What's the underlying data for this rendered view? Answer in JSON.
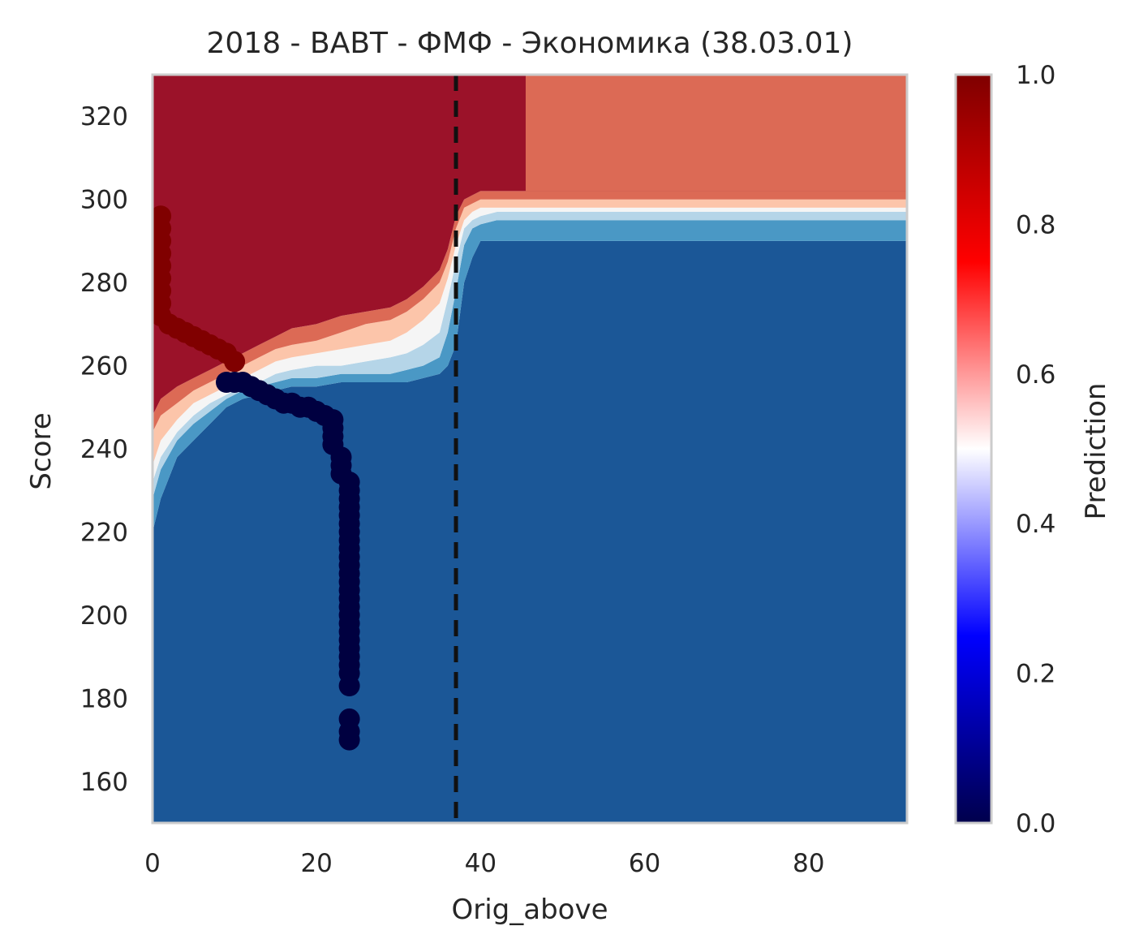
{
  "chart_data": {
    "type": "heatmap",
    "title": "2018 - ВАВТ - ФМФ - Экономика (38.03.01)",
    "xlabel": "Orig_above",
    "ylabel": "Score",
    "xlim": [
      0,
      92
    ],
    "ylim": [
      150,
      330
    ],
    "x_ticks": [
      0,
      20,
      40,
      60,
      80
    ],
    "y_ticks": [
      160,
      180,
      200,
      220,
      240,
      260,
      280,
      300,
      320
    ],
    "grid": false,
    "colorbar": {
      "label": "Prediction",
      "range": [
        0,
        1
      ],
      "ticks": [
        "0.0",
        "0.2",
        "0.4",
        "0.6",
        "0.8",
        "1.0"
      ],
      "colormap": "seismic"
    },
    "contour_levels": [
      {
        "from": 0.0,
        "to": 0.125,
        "color": "#1b5797"
      },
      {
        "from": 0.125,
        "to": 0.25,
        "color": "#4a98c5"
      },
      {
        "from": 0.25,
        "to": 0.375,
        "color": "#b5d5e8"
      },
      {
        "from": 0.375,
        "to": 0.5,
        "color": "#f5f5f5"
      },
      {
        "from": 0.5,
        "to": 0.625,
        "color": "#fcc5aa"
      },
      {
        "from": 0.625,
        "to": 0.75,
        "color": "#dc6a55"
      },
      {
        "from": 0.75,
        "to": 1.0,
        "color": "#9b1229"
      }
    ],
    "threshold_x": 37,
    "boundaries": {
      "x": [
        0,
        1,
        3,
        5,
        7,
        9,
        11,
        13,
        15,
        17,
        20,
        23,
        26,
        29,
        31,
        33,
        35,
        36,
        37,
        38,
        39,
        40,
        42,
        44,
        46,
        50,
        54,
        58,
        62,
        70,
        80,
        92
      ],
      "b1": [
        220,
        228,
        238,
        242,
        246,
        250,
        252,
        253,
        254,
        255,
        255,
        256,
        256,
        256,
        256,
        257,
        258,
        260,
        265,
        280,
        286,
        290,
        290,
        290,
        290,
        290,
        290,
        290,
        290,
        290,
        290,
        290
      ],
      "b2": [
        228,
        235,
        242,
        246,
        249,
        252,
        254,
        255,
        256,
        257,
        257,
        258,
        258,
        258,
        259,
        260,
        262,
        268,
        278,
        289,
        293,
        294,
        295,
        295,
        295,
        295,
        295,
        295,
        295,
        295,
        295,
        295
      ],
      "b3": [
        232,
        238,
        244,
        248,
        251,
        253,
        255,
        256,
        258,
        259,
        260,
        260,
        261,
        262,
        263,
        265,
        268,
        276,
        285,
        293,
        295,
        296,
        297,
        297,
        297,
        297,
        297,
        297,
        297,
        297,
        297,
        297
      ],
      "b4": [
        236,
        242,
        247,
        251,
        253,
        255,
        257,
        259,
        261,
        262,
        263,
        264,
        265,
        266,
        268,
        271,
        275,
        281,
        289,
        295,
        297,
        298,
        298,
        298,
        298,
        298,
        298,
        298,
        298,
        298,
        298,
        298
      ],
      "b5": [
        244,
        248,
        251,
        254,
        256,
        258,
        260,
        262,
        264,
        265,
        266,
        268,
        270,
        271,
        273,
        276,
        280,
        285,
        293,
        298,
        299,
        300,
        300,
        300,
        300,
        300,
        300,
        300,
        300,
        300,
        300,
        300
      ],
      "b6": [
        248,
        252,
        255,
        257,
        259,
        261,
        263,
        265,
        267,
        269,
        270,
        272,
        273,
        274,
        276,
        279,
        283,
        288,
        296,
        300,
        301,
        302,
        302,
        302,
        302,
        302,
        302,
        302,
        302,
        302,
        302,
        302
      ],
      "red_region_split_x": 45.5
    },
    "scatter_high": {
      "value": 1.0,
      "color": "#800000",
      "points": [
        [
          1,
          296
        ],
        [
          1,
          293
        ],
        [
          1,
          290
        ],
        [
          1,
          287
        ],
        [
          1,
          284
        ],
        [
          1,
          281
        ],
        [
          1,
          278
        ],
        [
          1,
          275
        ],
        [
          1,
          272
        ],
        [
          2,
          270
        ],
        [
          3,
          269
        ],
        [
          4,
          268
        ],
        [
          5,
          267
        ],
        [
          6,
          266
        ],
        [
          7,
          265
        ],
        [
          8,
          264
        ],
        [
          9,
          263
        ],
        [
          10,
          261
        ]
      ]
    },
    "scatter_low": {
      "value": 0.0,
      "color": "#000040",
      "points": [
        [
          9,
          256
        ],
        [
          10,
          256
        ],
        [
          11,
          256
        ],
        [
          12,
          255
        ],
        [
          13,
          254
        ],
        [
          14,
          253
        ],
        [
          15,
          252
        ],
        [
          16,
          251
        ],
        [
          17,
          251
        ],
        [
          18,
          250
        ],
        [
          19,
          250
        ],
        [
          20,
          249
        ],
        [
          21,
          248
        ],
        [
          22,
          247
        ],
        [
          22,
          245
        ],
        [
          22,
          243
        ],
        [
          22,
          241
        ],
        [
          23,
          238
        ],
        [
          23,
          236
        ],
        [
          23,
          234
        ],
        [
          24,
          232
        ],
        [
          24,
          230
        ],
        [
          24,
          228
        ],
        [
          24,
          226
        ],
        [
          24,
          224
        ],
        [
          24,
          222
        ],
        [
          24,
          220
        ],
        [
          24,
          218
        ],
        [
          24,
          216
        ],
        [
          24,
          214
        ],
        [
          24,
          212
        ],
        [
          24,
          210
        ],
        [
          24,
          208
        ],
        [
          24,
          206
        ],
        [
          24,
          204
        ],
        [
          24,
          202
        ],
        [
          24,
          200
        ],
        [
          24,
          198
        ],
        [
          24,
          196
        ],
        [
          24,
          194
        ],
        [
          24,
          192
        ],
        [
          24,
          190
        ],
        [
          24,
          188
        ],
        [
          24,
          186
        ],
        [
          24,
          183
        ],
        [
          24,
          175
        ],
        [
          24,
          172
        ],
        [
          24,
          170
        ]
      ]
    }
  }
}
